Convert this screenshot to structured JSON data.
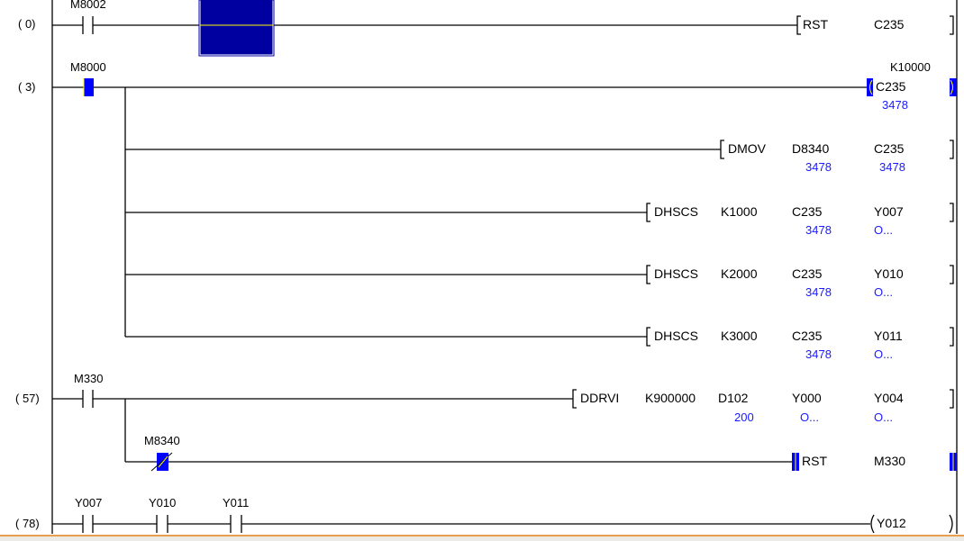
{
  "rungs": [
    {
      "step": "(    0)",
      "contacts": [
        "M8002"
      ],
      "instruction": "RST",
      "operands": [
        "C235"
      ]
    },
    {
      "step": "(    3)",
      "contacts": [
        "M8000"
      ],
      "coil": "C235",
      "setpoint": "K10000",
      "coil_value": "3478",
      "branches": [
        {
          "instruction": "DMOV",
          "operands": [
            "D8340",
            "C235"
          ],
          "values": [
            "3478",
            "3478"
          ]
        },
        {
          "instruction": "DHSCS",
          "operands": [
            "K1000",
            "C235",
            "Y007"
          ],
          "values": [
            "3478",
            "O..."
          ]
        },
        {
          "instruction": "DHSCS",
          "operands": [
            "K2000",
            "C235",
            "Y010"
          ],
          "values": [
            "3478",
            "O..."
          ]
        },
        {
          "instruction": "DHSCS",
          "operands": [
            "K3000",
            "C235",
            "Y011"
          ],
          "values": [
            "3478",
            "O..."
          ]
        }
      ]
    },
    {
      "step": "(   57)",
      "contacts": [
        "M330"
      ],
      "instruction": "DDRVI",
      "operands": [
        "K900000",
        "D102",
        "Y000",
        "Y004"
      ],
      "values": [
        "200",
        "O...",
        "O..."
      ],
      "branch": {
        "contact": "M8340",
        "instruction": "RST",
        "operands": [
          "M330"
        ]
      }
    },
    {
      "step": "(   78)",
      "contacts": [
        "Y007",
        "Y010",
        "Y011"
      ],
      "coil": "Y012"
    }
  ],
  "colors": {
    "active": "#0000ff",
    "cursor": "#0000a0",
    "value": "#1a1aff",
    "highlight": "#ffff00"
  }
}
